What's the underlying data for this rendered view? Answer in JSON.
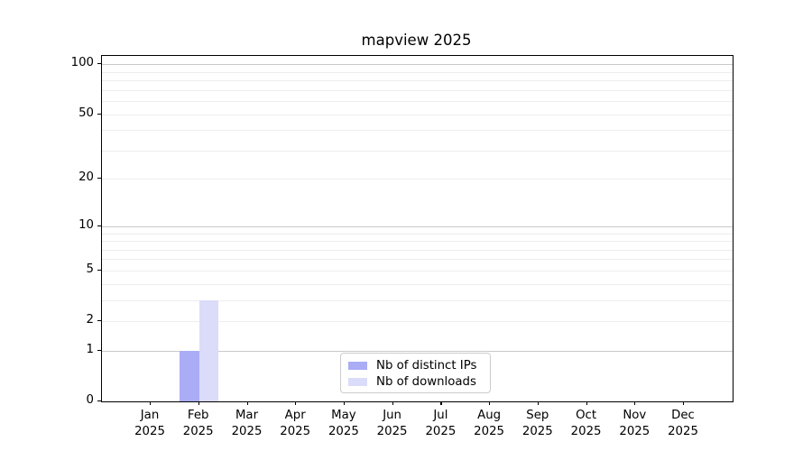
{
  "chart_data": {
    "type": "bar",
    "title": "mapview 2025",
    "categories": [
      "Jan",
      "Feb",
      "Mar",
      "Apr",
      "May",
      "Jun",
      "Jul",
      "Aug",
      "Sep",
      "Oct",
      "Nov",
      "Dec"
    ],
    "category_year": "2025",
    "series": [
      {
        "name": "Nb of distinct IPs",
        "color": "#aaacf5",
        "values": [
          0,
          1,
          0,
          0,
          0,
          0,
          0,
          0,
          0,
          0,
          0,
          0
        ]
      },
      {
        "name": "Nb of downloads",
        "color": "#dbdcfa",
        "values": [
          0,
          3,
          0,
          0,
          0,
          0,
          0,
          0,
          0,
          0,
          0,
          0
        ]
      }
    ],
    "y_axis": {
      "scale": "log1p",
      "ticks": [
        0,
        1,
        2,
        5,
        10,
        20,
        50,
        100
      ],
      "max": 112,
      "major_gridlines": [
        1,
        10,
        100
      ],
      "minor_gridlines": [
        2,
        3,
        4,
        5,
        6,
        7,
        8,
        9,
        20,
        30,
        40,
        50,
        60,
        70,
        80,
        90
      ]
    },
    "x_axis": {
      "label_lines": 2
    },
    "grid": "horizontal",
    "legend": {
      "position": "bottom-center"
    }
  }
}
